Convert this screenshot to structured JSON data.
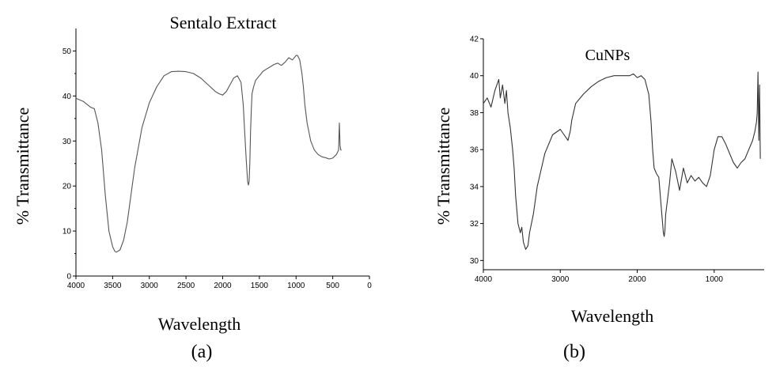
{
  "chart_data": [
    {
      "type": "line",
      "title": "Sentalo Extract",
      "xlabel": "Wavelength",
      "ylabel": "% Transmittance",
      "panel_label": "(a)",
      "xlim": [
        4000,
        0
      ],
      "ylim": [
        0,
        55
      ],
      "x_ticks": [
        "4000",
        "3500",
        "3000",
        "2500",
        "2000",
        "1500",
        "1000",
        "500",
        "0"
      ],
      "y_ticks": [
        "0",
        "10",
        "20",
        "30",
        "40",
        "50"
      ],
      "series": [
        {
          "color": "#555555",
          "x": [
            4000,
            3900,
            3800,
            3750,
            3700,
            3650,
            3600,
            3550,
            3500,
            3470,
            3450,
            3400,
            3350,
            3300,
            3200,
            3100,
            3000,
            2900,
            2800,
            2700,
            2600,
            2500,
            2400,
            2300,
            2200,
            2100,
            2050,
            2000,
            1950,
            1900,
            1850,
            1800,
            1750,
            1720,
            1700,
            1680,
            1660,
            1650,
            1640,
            1630,
            1620,
            1610,
            1600,
            1580,
            1550,
            1500,
            1450,
            1400,
            1350,
            1300,
            1250,
            1200,
            1150,
            1100,
            1050,
            1000,
            980,
            950,
            920,
            900,
            880,
            850,
            800,
            750,
            700,
            650,
            600,
            550,
            500,
            450,
            420,
            410,
            400,
            390,
            380
          ],
          "y": [
            39.5,
            38.8,
            37.5,
            37.2,
            34,
            28,
            18,
            10,
            6.5,
            5.5,
            5.3,
            5.8,
            8,
            12,
            24,
            33,
            38.5,
            42,
            44.5,
            45.4,
            45.5,
            45.4,
            45,
            44,
            42.5,
            41,
            40.5,
            40.2,
            41,
            42.5,
            44,
            44.5,
            43,
            38,
            32,
            26,
            21,
            20.2,
            21,
            25,
            32,
            37,
            40.5,
            42,
            43.5,
            44.5,
            45.5,
            46,
            46.5,
            47,
            47.3,
            46.8,
            47.5,
            48.5,
            48,
            49,
            49,
            48,
            45,
            42,
            38,
            34,
            30,
            28,
            27,
            26.5,
            26.3,
            26,
            26.2,
            27,
            28,
            34,
            29,
            28,
            28
          ]
        }
      ]
    },
    {
      "type": "line",
      "title": "CuNPs",
      "xlabel": "Wavelength",
      "ylabel": "% Transmittance",
      "panel_label": "(b)",
      "xlim": [
        4000,
        350
      ],
      "ylim": [
        29.5,
        42
      ],
      "x_ticks": [
        "4000",
        "3000",
        "2000",
        "1000"
      ],
      "y_ticks": [
        "30",
        "32",
        "34",
        "36",
        "38",
        "40",
        "42"
      ],
      "series": [
        {
          "color": "#333333",
          "x": [
            4000,
            3950,
            3900,
            3850,
            3800,
            3780,
            3750,
            3720,
            3700,
            3680,
            3650,
            3620,
            3600,
            3580,
            3550,
            3520,
            3500,
            3480,
            3450,
            3420,
            3400,
            3350,
            3300,
            3200,
            3100,
            3000,
            2950,
            2900,
            2870,
            2850,
            2800,
            2700,
            2600,
            2500,
            2400,
            2300,
            2200,
            2100,
            2050,
            2000,
            1950,
            1900,
            1850,
            1820,
            1800,
            1780,
            1750,
            1720,
            1700,
            1680,
            1660,
            1650,
            1640,
            1630,
            1600,
            1580,
            1550,
            1500,
            1450,
            1400,
            1350,
            1300,
            1250,
            1200,
            1150,
            1100,
            1050,
            1000,
            950,
            900,
            850,
            800,
            750,
            700,
            650,
            600,
            550,
            500,
            470,
            450,
            440,
            430,
            420,
            410,
            400
          ],
          "y": [
            38.5,
            38.8,
            38.3,
            39.2,
            39.8,
            38.8,
            39.5,
            38.5,
            39.2,
            38.0,
            37.2,
            36.0,
            35.0,
            33.5,
            32.0,
            31.5,
            31.8,
            31.0,
            30.6,
            30.8,
            31.5,
            32.5,
            34.0,
            35.8,
            36.8,
            37.1,
            36.8,
            36.5,
            37.0,
            37.6,
            38.5,
            39.0,
            39.4,
            39.7,
            39.9,
            40.0,
            40.0,
            40.0,
            40.1,
            39.9,
            40.0,
            39.8,
            39.0,
            37.5,
            36.0,
            35.0,
            34.7,
            34.5,
            33.5,
            32.5,
            31.5,
            31.3,
            31.6,
            32.5,
            33.5,
            34.2,
            35.5,
            34.8,
            33.8,
            35.0,
            34.2,
            34.6,
            34.3,
            34.5,
            34.2,
            34.0,
            34.6,
            36.0,
            36.7,
            36.7,
            36.3,
            35.8,
            35.3,
            35.0,
            35.3,
            35.5,
            36.0,
            36.5,
            37.0,
            37.5,
            38.0,
            40.2,
            36.5,
            39.5,
            35.5
          ]
        }
      ]
    }
  ]
}
